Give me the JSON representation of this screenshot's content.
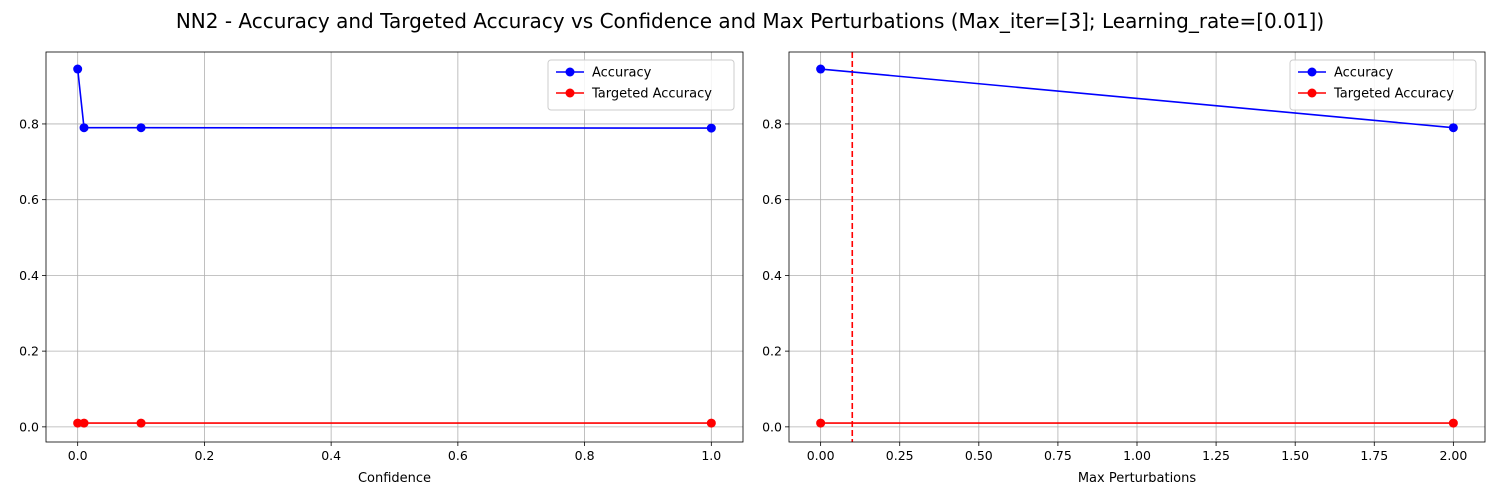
{
  "figure": {
    "title": "NN2 - Accuracy and Targeted Accuracy vs Confidence and Max Perturbations (Max_iter=[3]; Learning_rate=[0.01])"
  },
  "colors": {
    "accuracy": "#0000ff",
    "targeted": "#ff0000",
    "grid": "#b0b0b0",
    "vline": "#ff0000"
  },
  "chart_data": [
    {
      "type": "line",
      "xlabel": "Confidence",
      "ylabel": "",
      "xlim": [
        -0.05,
        1.05
      ],
      "ylim": [
        -0.04,
        0.99
      ],
      "xticks": [
        0.0,
        0.2,
        0.4,
        0.6,
        0.8,
        1.0
      ],
      "xtick_labels": [
        "0.0",
        "0.2",
        "0.4",
        "0.6",
        "0.8",
        "1.0"
      ],
      "yticks": [
        0.0,
        0.2,
        0.4,
        0.6,
        0.8
      ],
      "ytick_labels": [
        "0.0",
        "0.2",
        "0.4",
        "0.6",
        "0.8"
      ],
      "grid": true,
      "legend": "top-right",
      "series": [
        {
          "name": "Accuracy",
          "color": "#0000ff",
          "marker": "circle",
          "x": [
            0.0,
            0.01,
            0.1,
            1.0
          ],
          "y": [
            0.945,
            0.79,
            0.79,
            0.789
          ]
        },
        {
          "name": "Targeted Accuracy",
          "color": "#ff0000",
          "marker": "circle",
          "x": [
            0.0,
            0.01,
            0.1,
            1.0
          ],
          "y": [
            0.01,
            0.01,
            0.01,
            0.01
          ]
        }
      ]
    },
    {
      "type": "line",
      "xlabel": "Max Perturbations",
      "ylabel": "",
      "xlim": [
        -0.1,
        2.1
      ],
      "ylim": [
        -0.04,
        0.99
      ],
      "xticks": [
        0.0,
        0.25,
        0.5,
        0.75,
        1.0,
        1.25,
        1.5,
        1.75,
        2.0
      ],
      "xtick_labels": [
        "0.00",
        "0.25",
        "0.50",
        "0.75",
        "1.00",
        "1.25",
        "1.50",
        "1.75",
        "2.00"
      ],
      "yticks": [
        0.0,
        0.2,
        0.4,
        0.6,
        0.8
      ],
      "ytick_labels": [
        "0.0",
        "0.2",
        "0.4",
        "0.6",
        "0.8"
      ],
      "grid": true,
      "legend": "top-right",
      "vline": {
        "x": 0.1,
        "style": "dashed",
        "color": "#ff0000"
      },
      "series": [
        {
          "name": "Accuracy",
          "color": "#0000ff",
          "marker": "circle",
          "x": [
            0.0,
            2.0
          ],
          "y": [
            0.945,
            0.79
          ]
        },
        {
          "name": "Targeted Accuracy",
          "color": "#ff0000",
          "marker": "circle",
          "x": [
            0.0,
            2.0
          ],
          "y": [
            0.01,
            0.01
          ]
        }
      ]
    }
  ]
}
